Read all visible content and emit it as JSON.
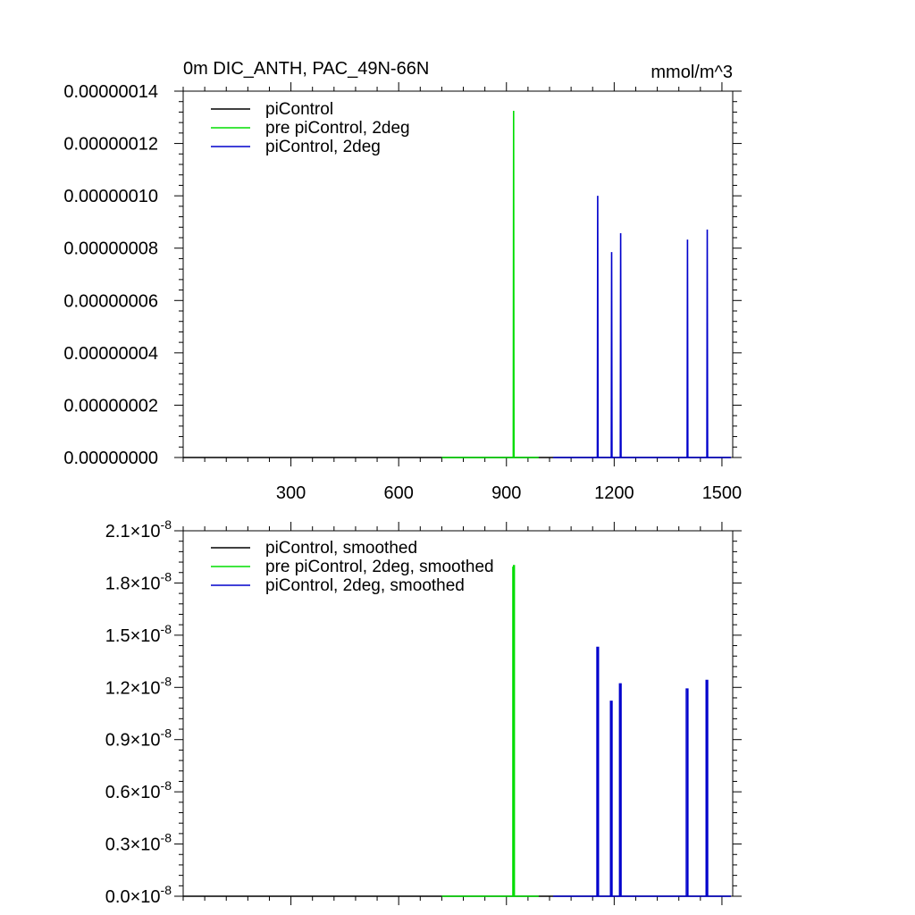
{
  "chart_data": [
    {
      "type": "line",
      "title": "0m DIC_ANTH, PAC_49N-66N",
      "units": "mmol/m^3",
      "xlabel": "",
      "ylabel": "",
      "xlim": [
        0,
        1530
      ],
      "ylim": [
        0,
        1.4e-07
      ],
      "xticks": [
        300,
        600,
        900,
        1200,
        1500
      ],
      "xtick_labels": [
        "300",
        "600",
        "900",
        "1200",
        "1500"
      ],
      "yticks": [
        0,
        2e-08,
        4e-08,
        6e-08,
        8e-08,
        1e-07,
        1.2e-07,
        1.4e-07
      ],
      "ytick_labels": [
        "0.00000000",
        "0.00000002",
        "0.00000004",
        "0.00000006",
        "0.00000008",
        "0.00000010",
        "0.00000012",
        "0.00000014"
      ],
      "grid": false,
      "legend_position": "top-left",
      "series": [
        {
          "name": "piControl",
          "color": "#000000",
          "points": [
            [
              0,
              0
            ],
            [
              1525,
              0
            ]
          ]
        },
        {
          "name": "pre piControl, 2deg",
          "color": "#00dd00",
          "points": [
            [
              720,
              0
            ],
            [
              919,
              0
            ],
            [
              920,
              1.325e-07
            ],
            [
              921,
              0
            ],
            [
              990,
              0
            ]
          ]
        },
        {
          "name": "piControl, 2deg",
          "color": "#0000cc",
          "points": [
            [
              1030,
              0
            ],
            [
              1153,
              0
            ],
            [
              1154,
              1e-07
            ],
            [
              1155,
              0
            ],
            [
              1192,
              0
            ],
            [
              1193,
              7.85e-08
            ],
            [
              1194,
              0
            ],
            [
              1217,
              0
            ],
            [
              1218,
              8.57e-08
            ],
            [
              1219,
              0
            ],
            [
              1403,
              0
            ],
            [
              1404,
              8.33e-08
            ],
            [
              1405,
              0
            ],
            [
              1458,
              0
            ],
            [
              1459,
              8.71e-08
            ],
            [
              1460,
              0
            ],
            [
              1525,
              0
            ]
          ]
        }
      ]
    },
    {
      "type": "line",
      "title": "",
      "xlabel": "",
      "ylabel": "",
      "xlim": [
        0,
        1530
      ],
      "ylim": [
        0,
        2.1e-08
      ],
      "xticks": [
        300,
        600,
        900,
        1200,
        1500
      ],
      "xtick_labels": [
        "",
        "",
        "",
        "",
        ""
      ],
      "yticks": [
        0,
        3e-09,
        6e-09,
        9e-09,
        1.2e-08,
        1.5e-08,
        1.8e-08,
        2.1e-08
      ],
      "ytick_labels": [
        "0.0×10-8",
        "0.3×10-8",
        "0.6×10-8",
        "0.9×10-8",
        "1.2×10-8",
        "1.5×10-8",
        "1.8×10-8",
        "2.1×10-8"
      ],
      "ytick_mantissas": [
        "0.0",
        "0.3",
        "0.6",
        "0.9",
        "1.2",
        "1.5",
        "1.8",
        "2.1"
      ],
      "ytick_times": "×",
      "ytick_base": "10",
      "ytick_exponent": "-8",
      "grid": false,
      "legend_position": "top-left",
      "series": [
        {
          "name": "piControl, smoothed",
          "color": "#000000",
          "points": [
            [
              0,
              0
            ],
            [
              1525,
              0
            ]
          ]
        },
        {
          "name": "pre piControl, 2deg, smoothed",
          "color": "#00dd00",
          "points": [
            [
              720,
              0
            ],
            [
              918,
              0
            ],
            [
              918,
              1.89e-08
            ],
            [
              920,
              1.89e-08
            ],
            [
              920,
              1.9e-08
            ],
            [
              922,
              1.9e-08
            ],
            [
              922,
              0
            ],
            [
              990,
              0
            ]
          ]
        },
        {
          "name": "piControl, 2deg, smoothed",
          "color": "#0000cc",
          "points": [
            [
              1030,
              0
            ],
            [
              1152,
              0
            ],
            [
              1152,
              1.43e-08
            ],
            [
              1156,
              1.43e-08
            ],
            [
              1156,
              0
            ],
            [
              1190,
              0
            ],
            [
              1190,
              1.12e-08
            ],
            [
              1194,
              1.12e-08
            ],
            [
              1194,
              0
            ],
            [
              1215,
              0
            ],
            [
              1215,
              1.22e-08
            ],
            [
              1219,
              1.22e-08
            ],
            [
              1219,
              0
            ],
            [
              1401,
              0
            ],
            [
              1401,
              1.19e-08
            ],
            [
              1405,
              1.19e-08
            ],
            [
              1405,
              0
            ],
            [
              1456,
              0
            ],
            [
              1456,
              1.24e-08
            ],
            [
              1460,
              1.24e-08
            ],
            [
              1460,
              0
            ],
            [
              1525,
              0
            ]
          ]
        }
      ]
    }
  ]
}
